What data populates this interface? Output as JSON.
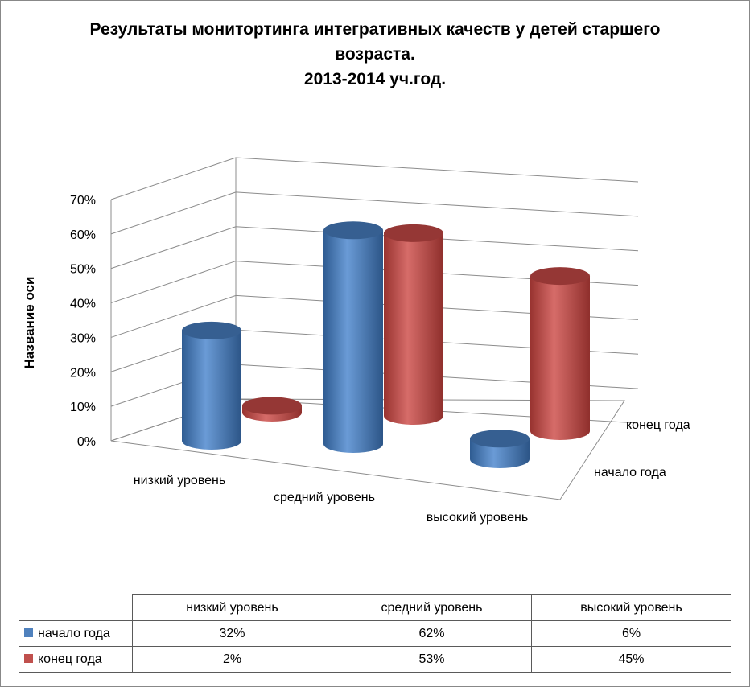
{
  "chart_data": {
    "type": "bar",
    "subtype": "3d-cylinder",
    "title": [
      "Результаты монитортинга интегративных качеств  у детей старшего",
      "возраста.",
      "2013-2014 уч.год."
    ],
    "ylabel": "Название оси",
    "ylim": [
      0,
      0.7
    ],
    "yticks": [
      "0%",
      "10%",
      "20%",
      "30%",
      "40%",
      "50%",
      "60%",
      "70%"
    ],
    "categories": [
      "низкий уровень",
      "средний уровень",
      "высокий уровень"
    ],
    "series": [
      {
        "name": "начало года",
        "values": [
          0.32,
          0.62,
          0.06
        ],
        "labels": [
          "32%",
          "62%",
          "6%"
        ],
        "color": "#4f81bd"
      },
      {
        "name": "конец года",
        "values": [
          0.02,
          0.53,
          0.45
        ],
        "labels": [
          "2%",
          "53%",
          "45%"
        ],
        "color": "#c0504d"
      }
    ],
    "grid": true,
    "data_table": true
  }
}
